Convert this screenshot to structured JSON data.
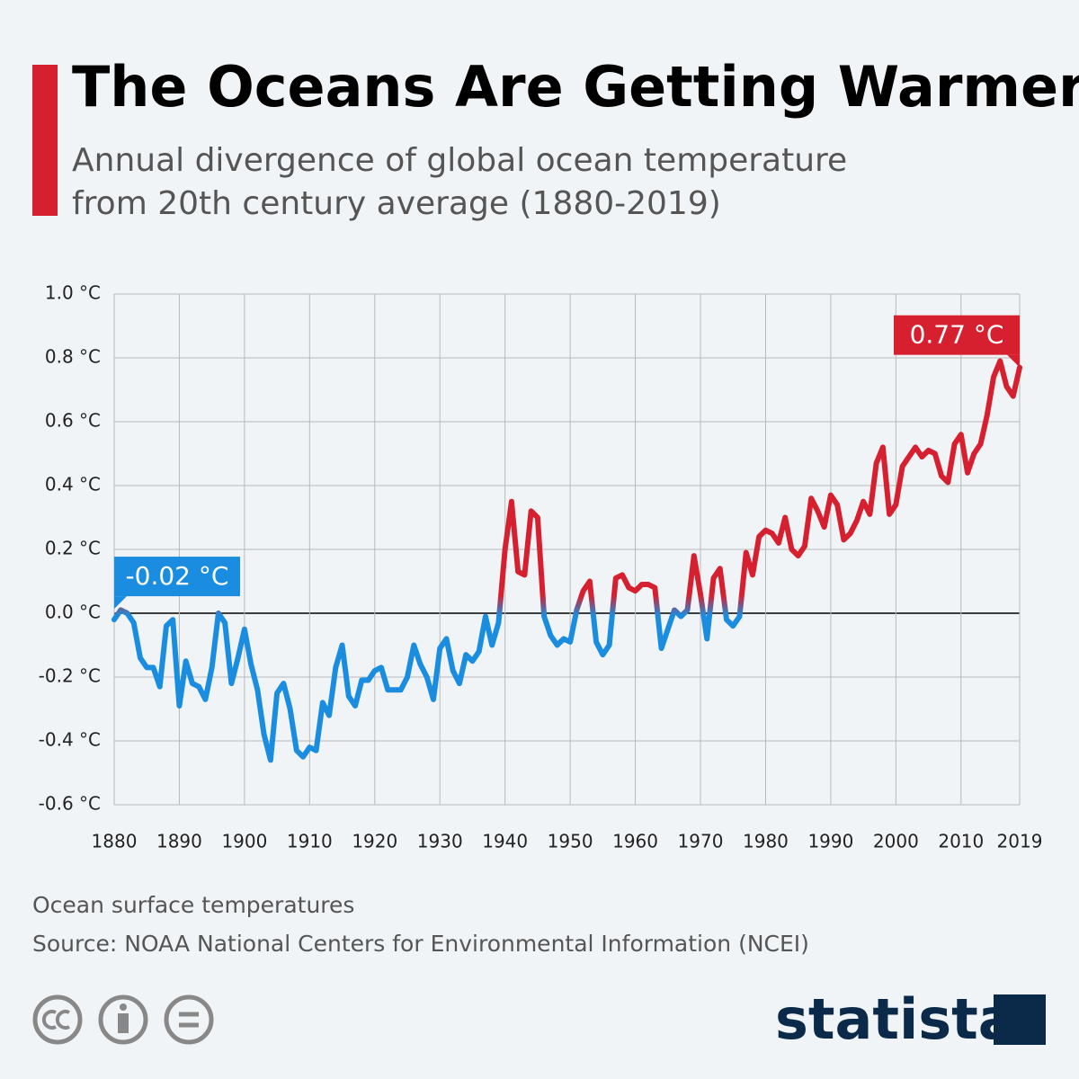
{
  "chart_data": {
    "type": "line",
    "title": "The Oceans Are Getting Warmer",
    "subtitle": [
      "Annual divergence of global ocean temperature",
      "from 20th century average (1880-2019)"
    ],
    "x": [
      1880,
      1881,
      1882,
      1883,
      1884,
      1885,
      1886,
      1887,
      1888,
      1889,
      1890,
      1891,
      1892,
      1893,
      1894,
      1895,
      1896,
      1897,
      1898,
      1899,
      1900,
      1901,
      1902,
      1903,
      1904,
      1905,
      1906,
      1907,
      1908,
      1909,
      1910,
      1911,
      1912,
      1913,
      1914,
      1915,
      1916,
      1917,
      1918,
      1919,
      1920,
      1921,
      1922,
      1923,
      1924,
      1925,
      1926,
      1927,
      1928,
      1929,
      1930,
      1931,
      1932,
      1933,
      1934,
      1935,
      1936,
      1937,
      1938,
      1939,
      1940,
      1941,
      1942,
      1943,
      1944,
      1945,
      1946,
      1947,
      1948,
      1949,
      1950,
      1951,
      1952,
      1953,
      1954,
      1955,
      1956,
      1957,
      1958,
      1959,
      1960,
      1961,
      1962,
      1963,
      1964,
      1965,
      1966,
      1967,
      1968,
      1969,
      1970,
      1971,
      1972,
      1973,
      1974,
      1975,
      1976,
      1977,
      1978,
      1979,
      1980,
      1981,
      1982,
      1983,
      1984,
      1985,
      1986,
      1987,
      1988,
      1989,
      1990,
      1991,
      1992,
      1993,
      1994,
      1995,
      1996,
      1997,
      1998,
      1999,
      2000,
      2001,
      2002,
      2003,
      2004,
      2005,
      2006,
      2007,
      2008,
      2009,
      2010,
      2011,
      2012,
      2013,
      2014,
      2015,
      2016,
      2017,
      2018,
      2019
    ],
    "values": [
      -0.02,
      0.01,
      0.0,
      -0.03,
      -0.14,
      -0.17,
      -0.17,
      -0.23,
      -0.04,
      -0.02,
      -0.29,
      -0.15,
      -0.22,
      -0.23,
      -0.27,
      -0.17,
      0.0,
      -0.03,
      -0.22,
      -0.14,
      -0.05,
      -0.16,
      -0.24,
      -0.38,
      -0.46,
      -0.25,
      -0.22,
      -0.3,
      -0.43,
      -0.45,
      -0.42,
      -0.43,
      -0.28,
      -0.32,
      -0.17,
      -0.1,
      -0.26,
      -0.29,
      -0.21,
      -0.21,
      -0.18,
      -0.17,
      -0.24,
      -0.24,
      -0.24,
      -0.2,
      -0.1,
      -0.16,
      -0.2,
      -0.27,
      -0.11,
      -0.08,
      -0.18,
      -0.22,
      -0.13,
      -0.15,
      -0.12,
      -0.01,
      -0.1,
      -0.03,
      0.2,
      0.35,
      0.13,
      0.12,
      0.32,
      0.3,
      -0.01,
      -0.07,
      -0.1,
      -0.08,
      -0.09,
      0.01,
      0.07,
      0.1,
      -0.09,
      -0.13,
      -0.1,
      0.11,
      0.12,
      0.08,
      0.07,
      0.09,
      0.09,
      0.08,
      -0.11,
      -0.05,
      0.01,
      -0.01,
      0.01,
      0.18,
      0.06,
      -0.08,
      0.11,
      0.14,
      -0.02,
      -0.04,
      -0.01,
      0.19,
      0.12,
      0.24,
      0.26,
      0.25,
      0.22,
      0.3,
      0.2,
      0.18,
      0.21,
      0.36,
      0.32,
      0.27,
      0.37,
      0.34,
      0.23,
      0.25,
      0.29,
      0.35,
      0.31,
      0.47,
      0.52,
      0.31,
      0.34,
      0.46,
      0.49,
      0.52,
      0.49,
      0.51,
      0.5,
      0.43,
      0.41,
      0.53,
      0.56,
      0.44,
      0.5,
      0.53,
      0.62,
      0.74,
      0.79,
      0.71,
      0.68,
      0.77
    ],
    "color_above": "#d7202f",
    "color_below": "#1a8de0",
    "xlim": [
      1880,
      2019
    ],
    "xticks": [
      1880,
      1890,
      1900,
      1910,
      1920,
      1930,
      1940,
      1950,
      1960,
      1970,
      1980,
      1990,
      2000,
      2010,
      2019
    ],
    "ylim": [
      -0.6,
      1.0
    ],
    "yticks": [
      {
        "value": -0.6,
        "label": "-0.6 °C"
      },
      {
        "value": -0.4,
        "label": "-0.4 °C"
      },
      {
        "value": -0.2,
        "label": "-0.2 °C"
      },
      {
        "value": 0,
        "label": "0.0 °C"
      },
      {
        "value": 0.2,
        "label": "0.2 °C"
      },
      {
        "value": 0.4,
        "label": "0.4 °C"
      },
      {
        "value": 0.6,
        "label": "0.6 °C"
      },
      {
        "value": 0.8,
        "label": "0.8 °C"
      },
      {
        "value": 1.0,
        "label": "1.0 °C"
      }
    ],
    "grid": true,
    "annotations": [
      {
        "x": 1880,
        "value": -0.02,
        "label": "-0.02 °C",
        "color": "#1a8de0"
      },
      {
        "x": 2019,
        "value": 0.77,
        "label": "0.77 °C",
        "color": "#d7202f"
      }
    ],
    "note": "Ocean surface temperatures",
    "source": "Source: NOAA National Centers for Environmental Information (NCEI)",
    "brand": "statista"
  }
}
